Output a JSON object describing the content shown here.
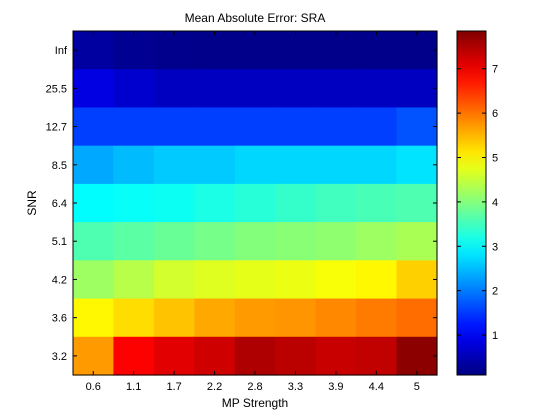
{
  "chart_data": {
    "type": "heatmap",
    "title": "Mean Absolute Error: SRA",
    "xlabel": "MP Strength",
    "ylabel": "SNR",
    "x_categories": [
      "0.6",
      "1.1",
      "1.7",
      "2.2",
      "2.8",
      "3.3",
      "3.9",
      "4.4",
      "5"
    ],
    "y_categories": [
      "Inf",
      "25.5",
      "12.7",
      "8.5",
      "6.4",
      "5.1",
      "4.2",
      "3.6",
      "3.2"
    ],
    "values": [
      [
        0.35,
        0.25,
        0.2,
        0.18,
        0.18,
        0.18,
        0.18,
        0.18,
        0.18
      ],
      [
        0.85,
        0.7,
        0.6,
        0.6,
        0.6,
        0.6,
        0.6,
        0.6,
        0.6
      ],
      [
        1.55,
        1.55,
        1.55,
        1.55,
        1.55,
        1.55,
        1.55,
        1.55,
        1.7
      ],
      [
        2.35,
        2.5,
        2.6,
        2.6,
        2.7,
        2.7,
        2.7,
        2.7,
        2.8
      ],
      [
        3.0,
        3.05,
        3.1,
        3.2,
        3.3,
        3.4,
        3.5,
        3.55,
        3.6
      ],
      [
        3.6,
        3.7,
        3.8,
        3.9,
        4.0,
        4.05,
        4.1,
        4.2,
        4.3
      ],
      [
        4.2,
        4.4,
        4.6,
        4.7,
        4.75,
        4.8,
        4.9,
        5.0,
        5.3
      ],
      [
        5.0,
        5.2,
        5.4,
        5.6,
        5.7,
        5.75,
        5.85,
        5.95,
        6.05
      ],
      [
        5.7,
        6.9,
        7.1,
        7.25,
        7.5,
        7.4,
        7.3,
        7.35,
        7.75
      ]
    ],
    "colormap": "jet",
    "clim": [
      0.1,
      7.85
    ],
    "colorbar_ticks": [
      1,
      2,
      3,
      4,
      5,
      6,
      7
    ],
    "colorbar_labels": [
      "1",
      "2",
      "3",
      "4",
      "5",
      "6",
      "7"
    ]
  }
}
